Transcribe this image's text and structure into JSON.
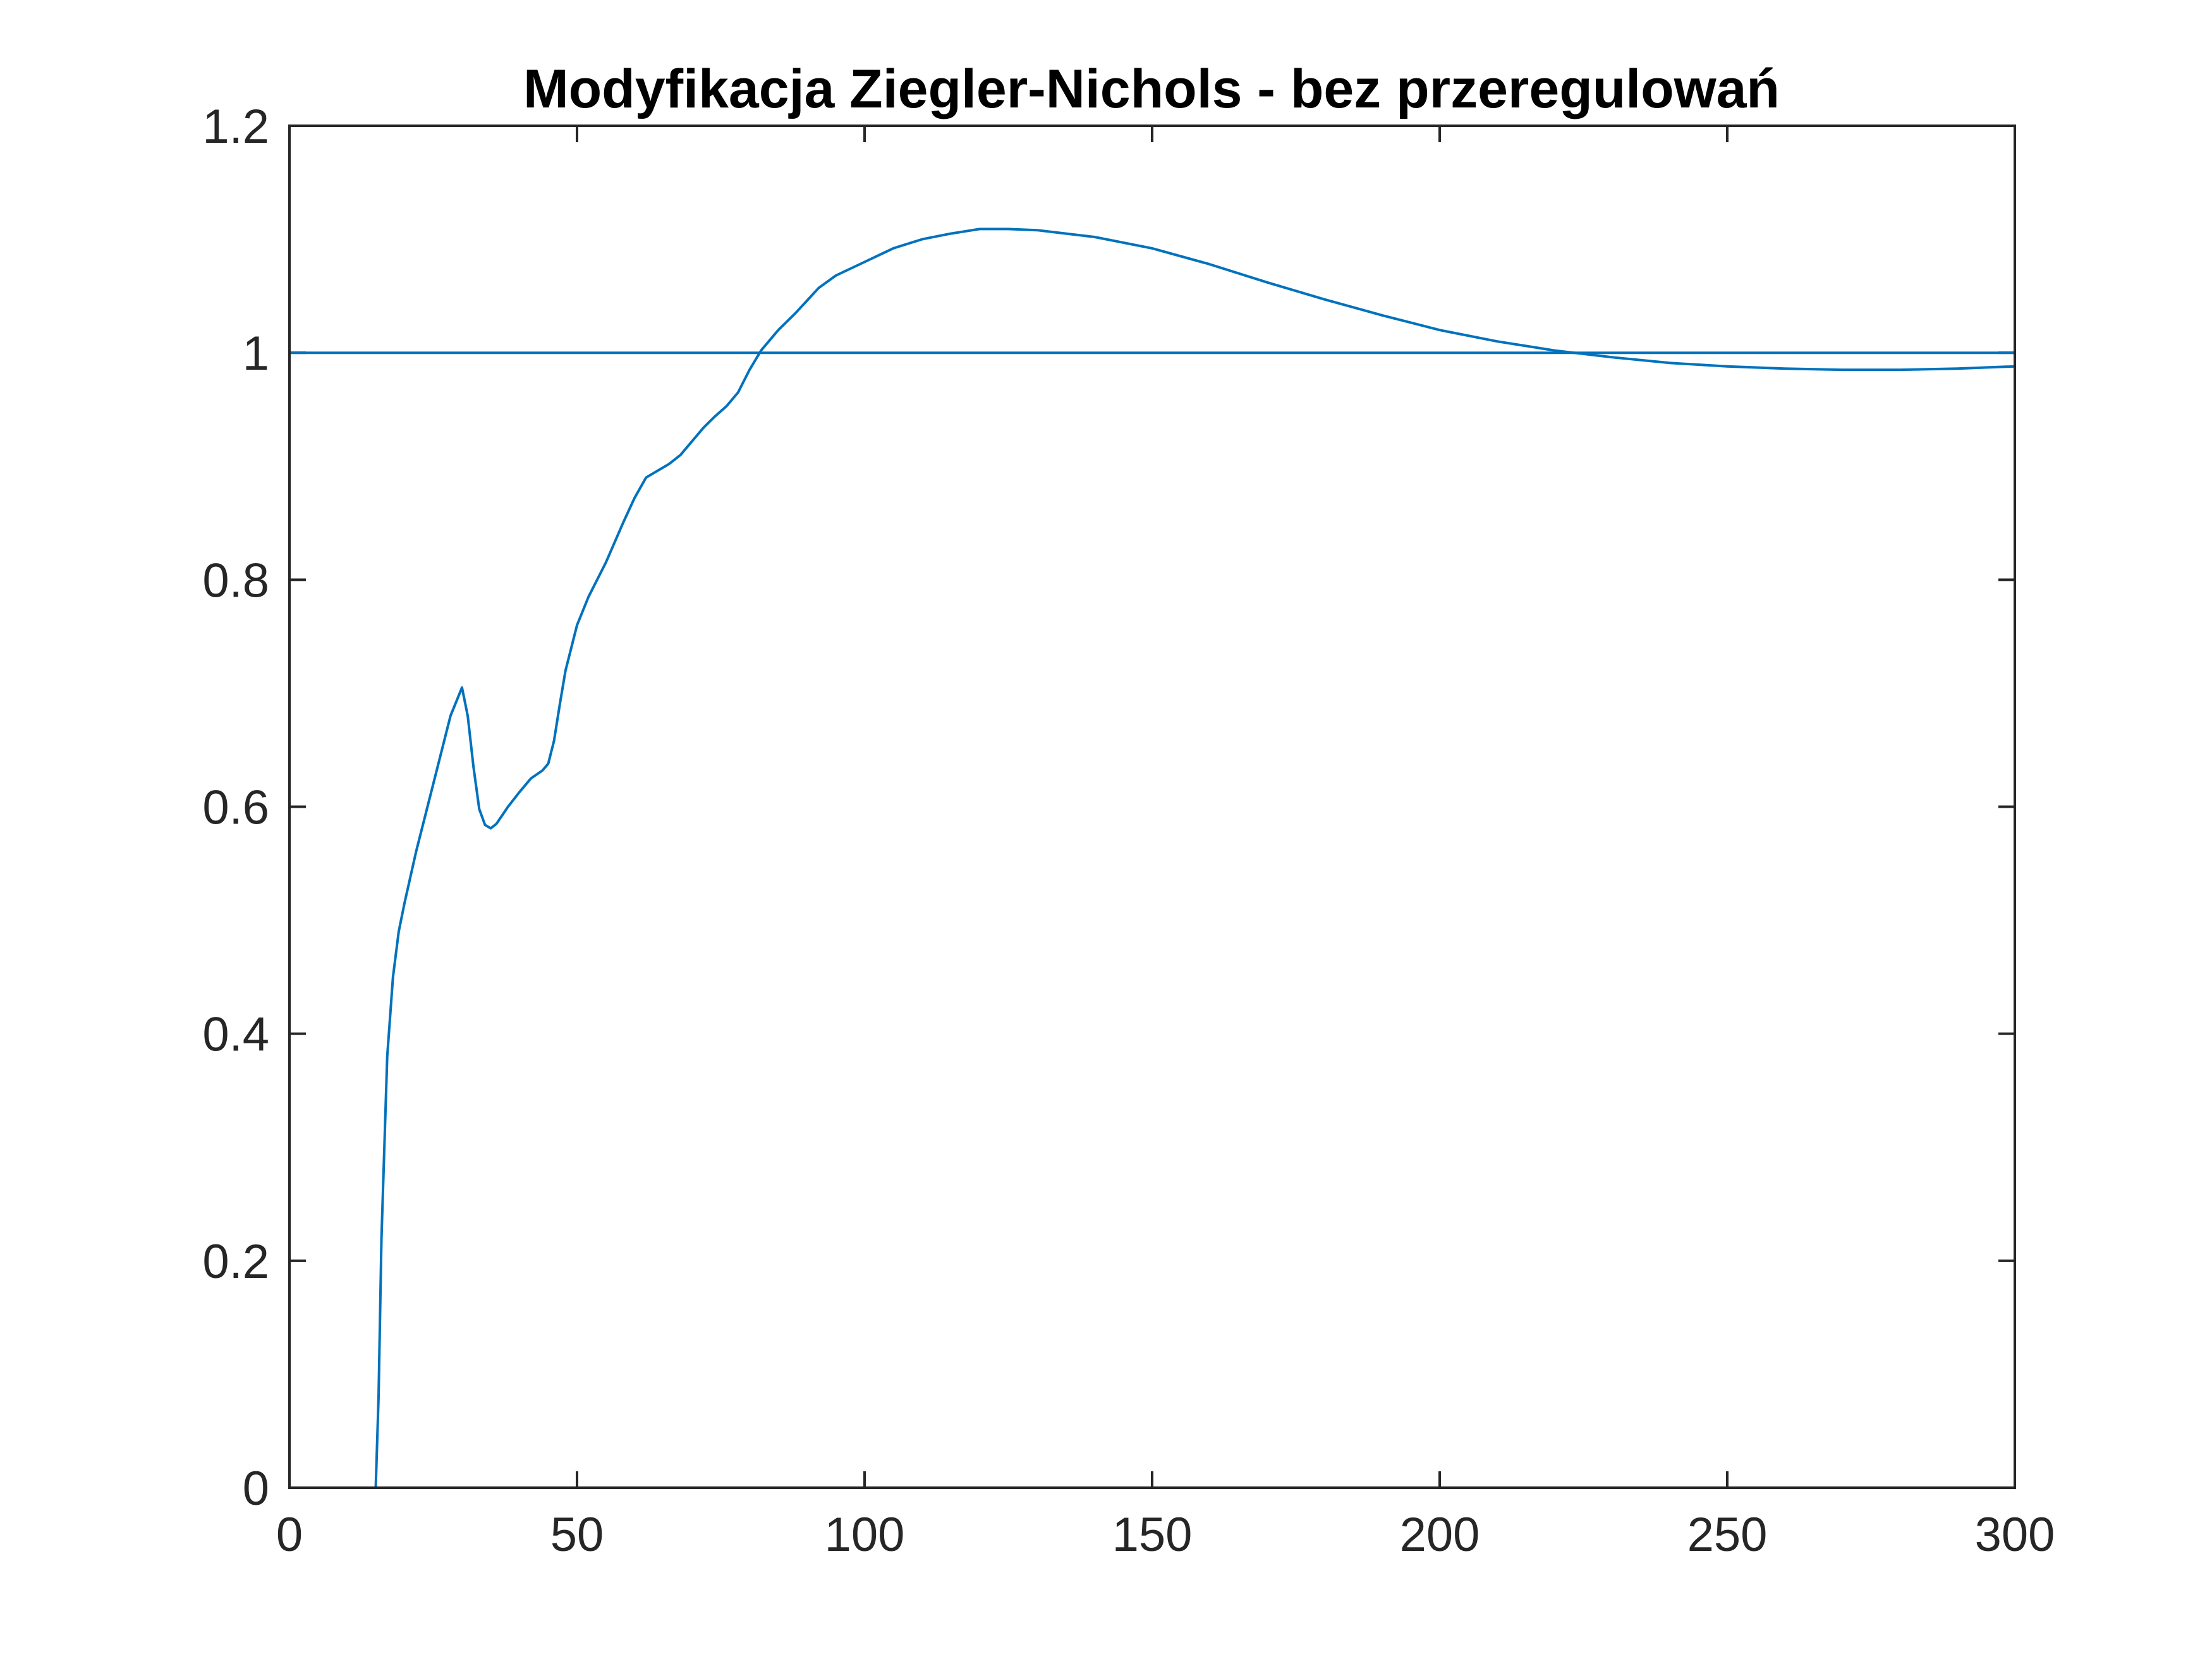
{
  "chart_data": {
    "type": "line",
    "title": "Modyfikacja Ziegler-Nichols - bez przeregulowań",
    "xlabel": "",
    "ylabel": "",
    "xlim": [
      0,
      300
    ],
    "ylim": [
      0,
      1.2
    ],
    "xticks": [
      0,
      50,
      100,
      150,
      200,
      250,
      300
    ],
    "xtick_labels": [
      "0",
      "50",
      "100",
      "150",
      "200",
      "250",
      "300"
    ],
    "yticks": [
      0,
      0.2,
      0.4,
      0.6,
      0.8,
      1,
      1.2
    ],
    "ytick_labels": [
      "0",
      "0.2",
      "0.4",
      "0.6",
      "0.8",
      "1",
      "1.2"
    ],
    "grid": false,
    "legend": "none",
    "series": [
      {
        "color": "#0072BD",
        "x": [
          0,
          15,
          15.5,
          16,
          17,
          18,
          19,
          20,
          22,
          25,
          28,
          30,
          31,
          32,
          33,
          34,
          35,
          36,
          38,
          40,
          42,
          44,
          45,
          46,
          47,
          48,
          50,
          52,
          55,
          58,
          60,
          62,
          64,
          66,
          68,
          70,
          72,
          74,
          76,
          78,
          80,
          82,
          85,
          88,
          90,
          92,
          95,
          100,
          105,
          110,
          115,
          120,
          125,
          130,
          140,
          150,
          160,
          170,
          180,
          190,
          200,
          210,
          220,
          230,
          240,
          250,
          260,
          270,
          280,
          290,
          300
        ],
        "y": [
          0,
          0,
          0.08,
          0.22,
          0.38,
          0.45,
          0.49,
          0.515,
          0.56,
          0.62,
          0.68,
          0.705,
          0.68,
          0.635,
          0.598,
          0.584,
          0.581,
          0.585,
          0.6,
          0.613,
          0.625,
          0.632,
          0.638,
          0.658,
          0.69,
          0.72,
          0.76,
          0.785,
          0.815,
          0.85,
          0.872,
          0.89,
          0.896,
          0.902,
          0.91,
          0.922,
          0.934,
          0.944,
          0.953,
          0.965,
          0.985,
          1.002,
          1.02,
          1.035,
          1.046,
          1.057,
          1.068,
          1.08,
          1.092,
          1.1,
          1.105,
          1.109,
          1.109,
          1.108,
          1.102,
          1.092,
          1.078,
          1.062,
          1.047,
          1.033,
          1.02,
          1.01,
          1.002,
          0.996,
          0.991,
          0.988,
          0.986,
          0.985,
          0.985,
          0.986,
          0.988
        ]
      },
      {
        "color": "#0072BD",
        "x": [
          0,
          300
        ],
        "y": [
          1,
          1
        ]
      }
    ]
  }
}
